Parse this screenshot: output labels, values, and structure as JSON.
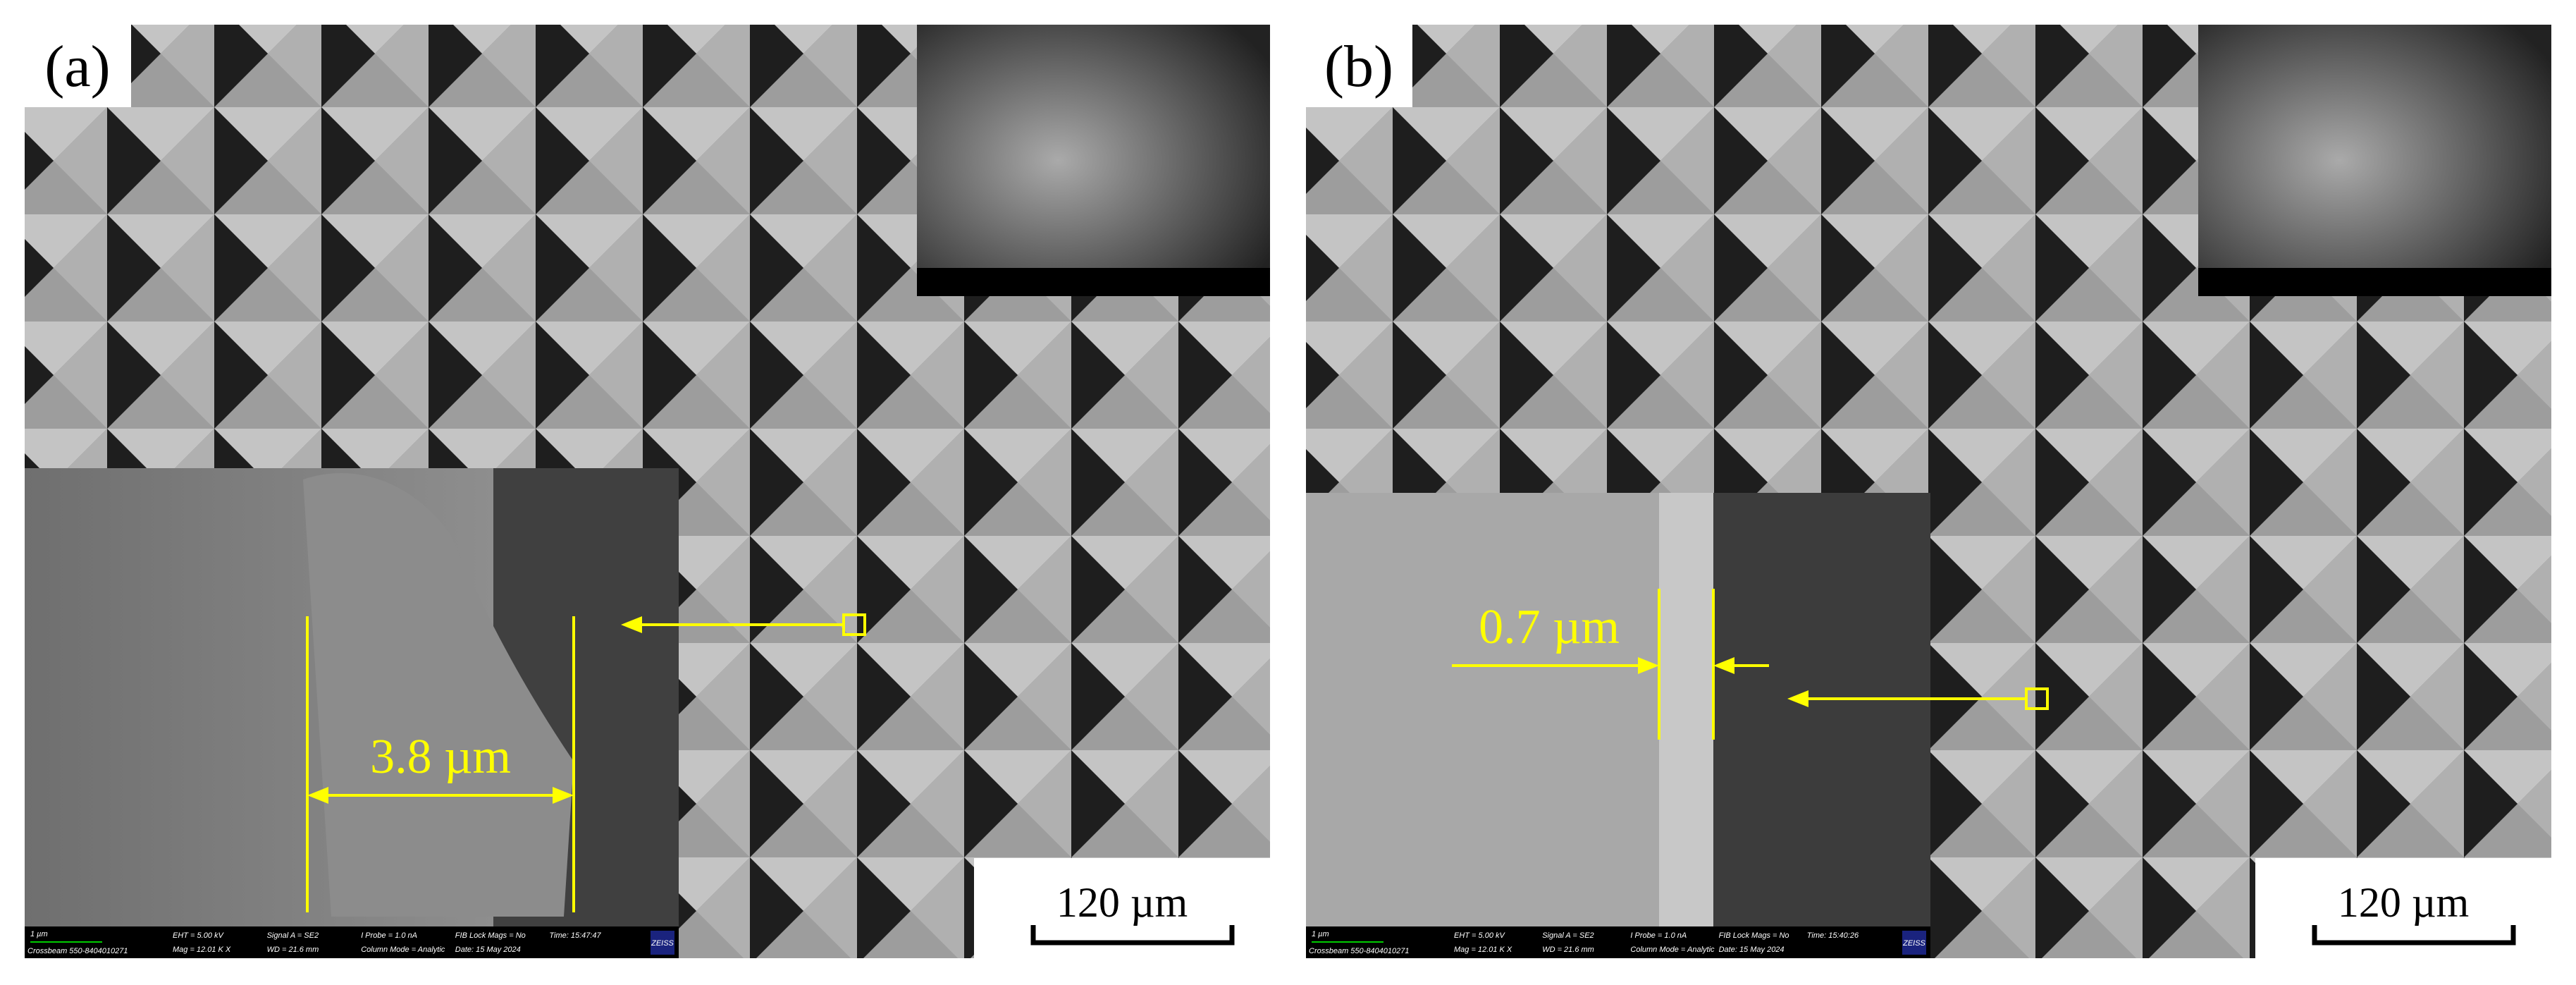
{
  "panels": [
    {
      "label": "(a)",
      "measurement": "3.8 µm",
      "scale_bar": "120 µm",
      "info_bar": {
        "scale": "1 µm",
        "instrument": "Crossbeam 550-8404010271",
        "fields": [
          "EHT =  5.00 kV",
          "Mag =  12.01 K X",
          "Signal A = SE2",
          "WD =  21.6 mm",
          "I Probe =  1.0 nA",
          "Column Mode = Analytic",
          "FIB Lock Mags = No",
          "Date: 15 May 2024",
          "Time: 15:47:47"
        ],
        "brand": "ZEISS"
      }
    },
    {
      "label": "(b)",
      "measurement": "0.7 µm",
      "scale_bar": "120 µm",
      "info_bar": {
        "scale": "1 µm",
        "instrument": "Crossbeam 550-8404010271",
        "fields": [
          "EHT =  5.00 kV",
          "Mag =  12.01 K X",
          "Signal A = SE2",
          "WD =  21.6 mm",
          "I Probe =  1.0 nA",
          "Column Mode = Analytic",
          "FIB Lock Mags = No",
          "Date: 15 May 2024",
          "Time: 15:40:26"
        ],
        "brand": "ZEISS"
      }
    }
  ]
}
